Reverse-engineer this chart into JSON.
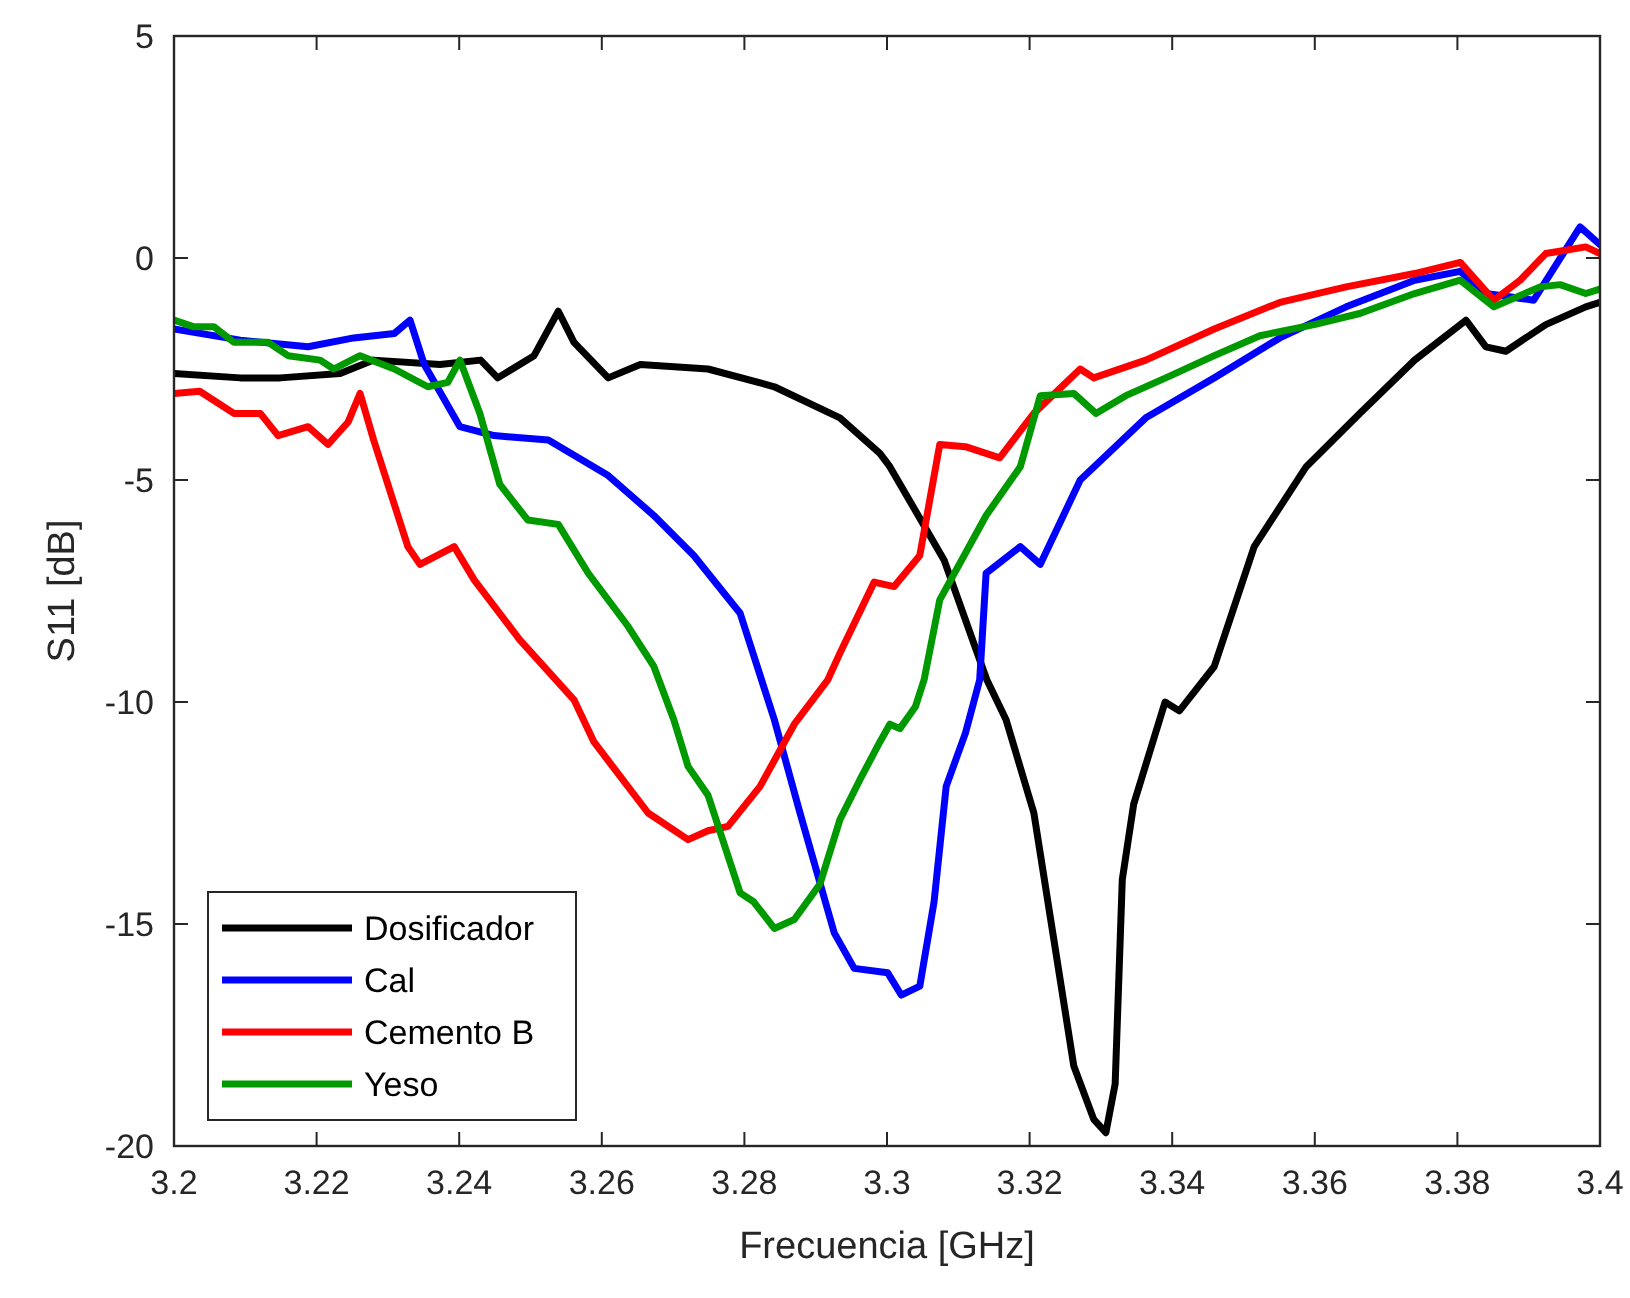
{
  "chart_data": {
    "type": "line",
    "xlabel": "Frecuencia [GHz]",
    "ylabel": "S11 [dB]",
    "xlim": [
      3.2,
      3.4
    ],
    "ylim": [
      -20,
      5
    ],
    "xticks": [
      3.2,
      3.22,
      3.24,
      3.26,
      3.28,
      3.3,
      3.32,
      3.34,
      3.36,
      3.38,
      3.4
    ],
    "yticks": [
      -20,
      -15,
      -10,
      -5,
      0,
      5
    ],
    "grid": false,
    "legend": "bottom left",
    "line_style": "solid",
    "marker": "none",
    "series": [
      {
        "name": "Dosificador",
        "color": "#000000",
        "x": [
          3.2,
          3.2093,
          3.2149,
          3.2233,
          3.228,
          3.2373,
          3.243,
          3.2454,
          3.2505,
          3.2539,
          3.2561,
          3.2609,
          3.2654,
          3.2749,
          3.2842,
          3.2934,
          3.299,
          3.3004,
          3.308,
          3.314,
          3.3167,
          3.3206,
          3.3262,
          3.329,
          3.3307,
          3.332,
          3.333,
          3.3346,
          3.339,
          3.341,
          3.3459,
          3.3515,
          3.3588,
          3.3663,
          3.374,
          3.3812,
          3.384,
          3.3868,
          3.3924,
          3.398,
          3.4
        ],
        "values": [
          -2.6,
          -2.7,
          -2.7,
          -2.6,
          -2.3,
          -2.4,
          -2.3,
          -2.7,
          -2.2,
          -1.2,
          -1.9,
          -2.7,
          -2.4,
          -2.5,
          -2.9,
          -3.6,
          -4.4,
          -4.7,
          -6.8,
          -9.5,
          -10.4,
          -12.5,
          -18.2,
          -19.4,
          -19.7,
          -18.6,
          -14,
          -12.3,
          -10,
          -10.2,
          -9.2,
          -6.5,
          -4.7,
          -3.5,
          -2.3,
          -1.4,
          -2,
          -2.1,
          -1.5,
          -1.1,
          -1
        ]
      },
      {
        "name": "Cal",
        "color": "#0000ff",
        "x": [
          3.2,
          3.2093,
          3.2188,
          3.2252,
          3.2309,
          3.2331,
          3.2351,
          3.2401,
          3.2449,
          3.2525,
          3.2609,
          3.2673,
          3.2729,
          3.2794,
          3.2842,
          3.2878,
          3.2926,
          3.2954,
          3.3001,
          3.302,
          3.3046,
          3.3066,
          3.3083,
          3.311,
          3.313,
          3.3139,
          3.3187,
          3.3215,
          3.3271,
          3.3363,
          3.3459,
          3.3551,
          3.3644,
          3.374,
          3.3804,
          3.384,
          3.3907,
          3.3972,
          3.4
        ],
        "values": [
          -1.6,
          -1.85,
          -2,
          -1.8,
          -1.7,
          -1.4,
          -2.4,
          -3.8,
          -4,
          -4.1,
          -4.9,
          -5.8,
          -6.7,
          -8,
          -10.4,
          -12.5,
          -15.2,
          -16,
          -16.1,
          -16.6,
          -16.4,
          -14.5,
          -11.9,
          -10.7,
          -9.5,
          -7.1,
          -6.5,
          -6.9,
          -5,
          -3.6,
          -2.7,
          -1.8,
          -1.1,
          -0.5,
          -0.3,
          -0.8,
          -0.95,
          0.7,
          0.3
        ]
      },
      {
        "name": "Cemento B",
        "color": "#ff0000",
        "x": [
          3.2,
          3.2036,
          3.2084,
          3.2121,
          3.2146,
          3.2188,
          3.2216,
          3.2244,
          3.2261,
          3.228,
          3.2328,
          3.2345,
          3.2393,
          3.2421,
          3.2485,
          3.2561,
          3.2589,
          3.2665,
          3.2721,
          3.2749,
          3.2777,
          3.2822,
          3.287,
          3.2917,
          3.2934,
          3.2982,
          3.301,
          3.3046,
          3.3074,
          3.311,
          3.3158,
          3.3206,
          3.3271,
          3.329,
          3.3363,
          3.3459,
          3.3551,
          3.3644,
          3.374,
          3.3804,
          3.3851,
          3.3888,
          3.3924,
          3.398,
          3.4
        ],
        "values": [
          -3.05,
          -3,
          -3.5,
          -3.5,
          -4,
          -3.8,
          -4.2,
          -3.7,
          -3.05,
          -4.1,
          -6.5,
          -6.9,
          -6.5,
          -7.25,
          -8.6,
          -9.95,
          -10.9,
          -12.5,
          -13.1,
          -12.9,
          -12.8,
          -11.9,
          -10.5,
          -9.5,
          -8.9,
          -7.3,
          -7.4,
          -6.7,
          -4.2,
          -4.25,
          -4.5,
          -3.5,
          -2.5,
          -2.7,
          -2.3,
          -1.6,
          -1,
          -0.65,
          -0.35,
          -0.1,
          -0.95,
          -0.5,
          0.1,
          0.25,
          0.1
        ]
      },
      {
        "name": "Yeso",
        "color": "#009900",
        "x": [
          3.2,
          3.2028,
          3.2056,
          3.2084,
          3.2132,
          3.216,
          3.2205,
          3.2224,
          3.2261,
          3.2309,
          3.2356,
          3.2384,
          3.2401,
          3.2429,
          3.2457,
          3.2496,
          3.2539,
          3.2581,
          3.2637,
          3.2673,
          3.2701,
          3.2721,
          3.2749,
          3.2794,
          3.2813,
          3.2842,
          3.287,
          3.2906,
          3.2934,
          3.2962,
          3.299,
          3.3004,
          3.3018,
          3.304,
          3.3052,
          3.3074,
          3.3139,
          3.3187,
          3.3215,
          3.3262,
          3.3293,
          3.3335,
          3.3391,
          3.3459,
          3.3523,
          3.3599,
          3.3663,
          3.374,
          3.3804,
          3.3851,
          3.3916,
          3.3944,
          3.398,
          3.4
        ],
        "values": [
          -1.4,
          -1.55,
          -1.55,
          -1.9,
          -1.9,
          -2.2,
          -2.3,
          -2.5,
          -2.2,
          -2.5,
          -2.9,
          -2.8,
          -2.3,
          -3.5,
          -5.1,
          -5.9,
          -6,
          -7.1,
          -8.3,
          -9.2,
          -10.4,
          -11.45,
          -12.1,
          -14.3,
          -14.5,
          -15.1,
          -14.9,
          -14.1,
          -12.65,
          -11.75,
          -10.9,
          -10.5,
          -10.6,
          -10.1,
          -9.5,
          -7.7,
          -5.8,
          -4.7,
          -3.1,
          -3.05,
          -3.5,
          -3.1,
          -2.7,
          -2.2,
          -1.75,
          -1.5,
          -1.25,
          -0.8,
          -0.5,
          -1.1,
          -0.65,
          -0.6,
          -0.8,
          -0.7
        ]
      }
    ]
  }
}
